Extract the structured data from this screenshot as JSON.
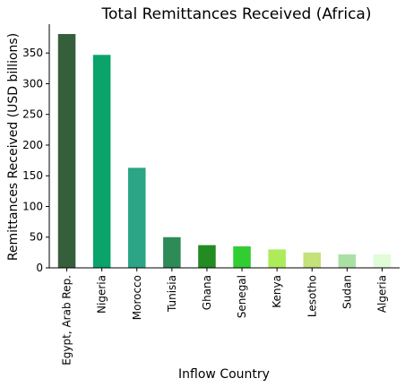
{
  "chart_data": {
    "type": "bar",
    "title": "Total Remittances Received (Africa)",
    "xlabel": "Inflow Country",
    "ylabel": "Remittances Received (USD billions)",
    "categories": [
      "Egypt, Arab Rep.",
      "Nigeria",
      "Morocco",
      "Tunisia",
      "Ghana",
      "Senegal",
      "Kenya",
      "Lesotho",
      "Sudan",
      "Algeria"
    ],
    "values": [
      381,
      347,
      163,
      50,
      37,
      35,
      30,
      25,
      22,
      22
    ],
    "colors": [
      "#355e3b",
      "#0aa36a",
      "#2ba585",
      "#2e8b57",
      "#228b22",
      "#32cd32",
      "#adeb5a",
      "#c4e17a",
      "#abe0a5",
      "#e0fcd8"
    ],
    "ylim": [
      0,
      397
    ],
    "yticks": [
      0,
      50,
      100,
      150,
      200,
      250,
      300,
      350
    ],
    "grid": false
  }
}
